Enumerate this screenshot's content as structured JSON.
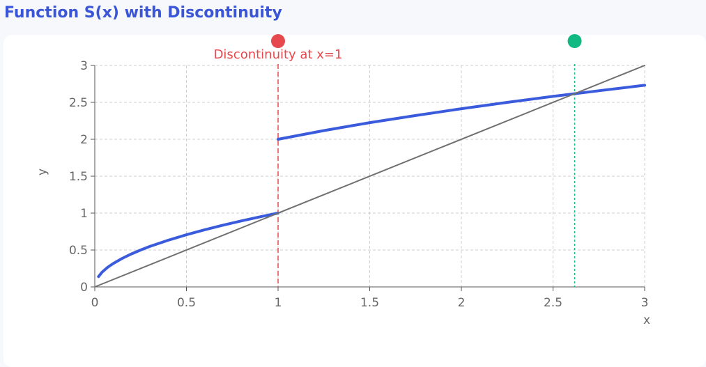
{
  "page": {
    "title": "Function S(x) with Discontinuity"
  },
  "chart_data": {
    "type": "line",
    "title": "Function S(x) with Discontinuity",
    "xlabel": "x",
    "ylabel": "y",
    "xlim": [
      0,
      3
    ],
    "ylim": [
      0,
      3
    ],
    "x_ticks": [
      "0",
      "0.5",
      "1",
      "1.5",
      "2",
      "2.5",
      "3"
    ],
    "y_ticks": [
      "0",
      "0.5",
      "1",
      "1.5",
      "2",
      "2.5",
      "3"
    ],
    "grid": true,
    "series": [
      {
        "role": "S(x) for x < 1",
        "color": "#3a5bdc",
        "x": [
          0.02,
          0.04,
          0.07,
          0.1,
          0.15,
          0.2,
          0.25,
          0.3,
          0.4,
          0.5,
          0.6,
          0.7,
          0.8,
          0.9,
          1.0
        ],
        "y": [
          0.14,
          0.2,
          0.265,
          0.316,
          0.387,
          0.447,
          0.5,
          0.548,
          0.632,
          0.707,
          0.775,
          0.837,
          0.894,
          0.949,
          1.0
        ]
      },
      {
        "role": "S(x) for x >= 1",
        "color": "#3a5bdc",
        "x": [
          1.0,
          1.25,
          1.5,
          1.75,
          2.0,
          2.25,
          2.5,
          2.75,
          3.0
        ],
        "y": [
          2.0,
          2.118,
          2.225,
          2.322,
          2.414,
          2.5,
          2.581,
          2.658,
          2.732
        ]
      },
      {
        "role": "reference line y = x",
        "color": "#707070",
        "x": [
          0,
          3
        ],
        "y": [
          0,
          3
        ]
      }
    ],
    "annotations": [
      {
        "type": "vertical-line",
        "x": 1,
        "color": "#e5484d",
        "label": "Discontinuity at x=1",
        "marker": "top-dot"
      },
      {
        "type": "vertical-line",
        "x": 2.618,
        "color": "#10b981",
        "label": "",
        "marker": "top-dot"
      }
    ]
  }
}
